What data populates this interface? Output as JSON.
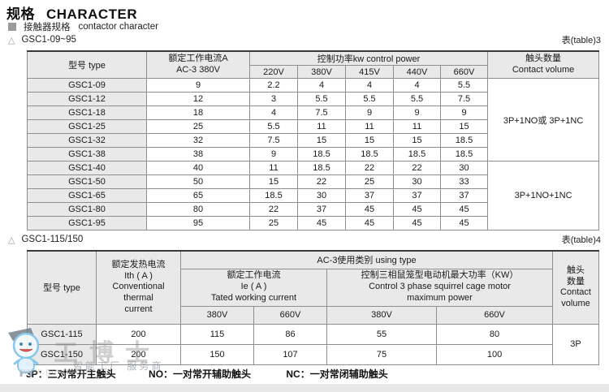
{
  "page": {
    "title_zh": "规格",
    "title_en": "CHARACTER",
    "subtitle_zh": "接触器规格",
    "subtitle_en": "contactor character"
  },
  "section1": {
    "marker": "△",
    "label": "GSC1-09~95",
    "table_ref": "表(table)3"
  },
  "section2": {
    "marker": "△",
    "label": "GSC1-115/150",
    "table_ref": "表(table)4"
  },
  "table3": {
    "headers": {
      "type": "型号 type",
      "rated": "额定工作电流A\nAC-3 380V",
      "power": "控制功率kw control power",
      "volts": [
        "220V",
        "380V",
        "415V",
        "440V",
        "660V"
      ],
      "contact": "触头数量\nContact volume"
    },
    "rows": [
      {
        "cells": [
          {
            "t": "GSC1-09",
            "cls": "label"
          },
          {
            "t": "9"
          },
          {
            "t": "2.2"
          },
          {
            "t": "4"
          },
          {
            "t": "4"
          },
          {
            "t": "4"
          },
          {
            "t": "5.5"
          },
          {
            "t": "3P+1NO或 3P+1NC",
            "rowspan": 6,
            "cls": "contact"
          }
        ]
      },
      {
        "cells": [
          {
            "t": "GSC1-12",
            "cls": "label"
          },
          {
            "t": "12"
          },
          {
            "t": "3"
          },
          {
            "t": "5.5"
          },
          {
            "t": "5.5"
          },
          {
            "t": "5.5"
          },
          {
            "t": "7.5"
          }
        ]
      },
      {
        "cells": [
          {
            "t": "GSC1-18",
            "cls": "label"
          },
          {
            "t": "18"
          },
          {
            "t": "4"
          },
          {
            "t": "7.5"
          },
          {
            "t": "9"
          },
          {
            "t": "9"
          },
          {
            "t": "9"
          }
        ]
      },
      {
        "cells": [
          {
            "t": "GSC1-25",
            "cls": "label"
          },
          {
            "t": "25"
          },
          {
            "t": "5.5"
          },
          {
            "t": "11"
          },
          {
            "t": "11"
          },
          {
            "t": "11"
          },
          {
            "t": "15"
          }
        ]
      },
      {
        "cells": [
          {
            "t": "GSC1-32",
            "cls": "label"
          },
          {
            "t": "32"
          },
          {
            "t": "7.5"
          },
          {
            "t": "15"
          },
          {
            "t": "15"
          },
          {
            "t": "15"
          },
          {
            "t": "18.5"
          }
        ]
      },
      {
        "cells": [
          {
            "t": "GSC1-38",
            "cls": "label"
          },
          {
            "t": "38"
          },
          {
            "t": "9"
          },
          {
            "t": "18.5"
          },
          {
            "t": "18.5"
          },
          {
            "t": "18.5"
          },
          {
            "t": "18.5"
          }
        ]
      },
      {
        "sep": true,
        "cells": [
          {
            "t": "GSC1-40",
            "cls": "label"
          },
          {
            "t": "40"
          },
          {
            "t": "11"
          },
          {
            "t": "18.5"
          },
          {
            "t": "22"
          },
          {
            "t": "22"
          },
          {
            "t": "30"
          },
          {
            "t": "3P+1NO+1NC",
            "rowspan": 5,
            "cls": "contact"
          }
        ]
      },
      {
        "cells": [
          {
            "t": "GSC1-50",
            "cls": "label"
          },
          {
            "t": "50"
          },
          {
            "t": "15"
          },
          {
            "t": "22"
          },
          {
            "t": "25"
          },
          {
            "t": "30"
          },
          {
            "t": "33"
          }
        ]
      },
      {
        "cells": [
          {
            "t": "GSC1-65",
            "cls": "label"
          },
          {
            "t": "65"
          },
          {
            "t": "18.5"
          },
          {
            "t": "30"
          },
          {
            "t": "37"
          },
          {
            "t": "37"
          },
          {
            "t": "37"
          }
        ]
      },
      {
        "cells": [
          {
            "t": "GSC1-80",
            "cls": "label"
          },
          {
            "t": "80"
          },
          {
            "t": "22"
          },
          {
            "t": "37"
          },
          {
            "t": "45"
          },
          {
            "t": "45"
          },
          {
            "t": "45"
          }
        ]
      },
      {
        "cells": [
          {
            "t": "GSC1-95",
            "cls": "label"
          },
          {
            "t": "95"
          },
          {
            "t": "25"
          },
          {
            "t": "45"
          },
          {
            "t": "45"
          },
          {
            "t": "45"
          },
          {
            "t": "45"
          }
        ]
      }
    ]
  },
  "table4": {
    "headers": {
      "type": "型号 type",
      "thermal": "额定发热电流\nIth ( A )\nConventional\nthermal\ncurrent",
      "using": "AC-3使用类别 using type",
      "working": "额定工作电流\nIe ( A )\nTated working current",
      "motor": "控制三相鼠笼型电动机最大功率（KW）\nControl 3 phase squirrel cage motor\nmaximum power",
      "volts": [
        "380V",
        "660V",
        "380V",
        "660V"
      ],
      "contact": "触头\n数量\nContact\nvolume"
    },
    "rows": [
      {
        "cells": [
          {
            "t": "GSC1-115",
            "cls": "label"
          },
          {
            "t": "200"
          },
          {
            "t": "115"
          },
          {
            "t": "86"
          },
          {
            "t": "55"
          },
          {
            "t": "80"
          },
          {
            "t": "3P",
            "rowspan": 2,
            "cls": "contact"
          }
        ]
      },
      {
        "cells": [
          {
            "t": "GSC1-150",
            "cls": "label"
          },
          {
            "t": "200"
          },
          {
            "t": "150"
          },
          {
            "t": "107"
          },
          {
            "t": "75"
          },
          {
            "t": "100"
          }
        ]
      }
    ]
  },
  "footnote": {
    "p3": "3P：三对常开主触头",
    "no": "NO：一对常开辅助触头",
    "nc": "NC：一对常闭辅助触头"
  },
  "watermark": {
    "brand": "工博士",
    "tagline": "智能工厂 服务商",
    "url": "www.gongboshi"
  },
  "colors": {
    "header_bg": "#e9e9e9",
    "border_inner": "#8f8f8f",
    "border_outer": "#4a4a4a",
    "text": "#1a1a1a",
    "watermark_blue": "#7fc4e8"
  }
}
